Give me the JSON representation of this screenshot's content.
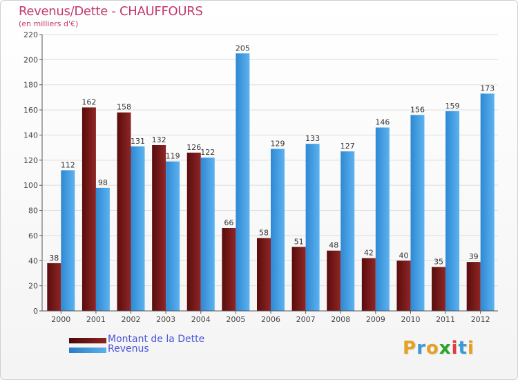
{
  "chart_data": {
    "type": "bar",
    "title": "Revenus/Dette - CHAUFFOURS",
    "subtitle": "(en milliers d'€)",
    "categories": [
      "2000",
      "2001",
      "2002",
      "2003",
      "2004",
      "2005",
      "2006",
      "2007",
      "2008",
      "2009",
      "2010",
      "2011",
      "2012"
    ],
    "series": [
      {
        "name": "Montant de la Dette",
        "color": "#7a1a1a",
        "values": [
          38,
          162,
          158,
          132,
          126,
          66,
          58,
          51,
          48,
          42,
          40,
          35,
          39
        ]
      },
      {
        "name": "Revenus",
        "color": "#3e9ee6",
        "values": [
          112,
          98,
          131,
          119,
          122,
          205,
          129,
          133,
          127,
          146,
          156,
          159,
          173
        ]
      }
    ],
    "ylim": [
      0,
      220
    ],
    "yticks": [
      0,
      20,
      40,
      60,
      80,
      100,
      120,
      140,
      160,
      180,
      200,
      220
    ],
    "grid": true,
    "legend_position": "bottom-left"
  },
  "logo": {
    "letters": [
      "P",
      "r",
      "o",
      "x",
      "i",
      "t",
      "i"
    ],
    "colors": [
      "#e8a020",
      "#3a9ad9",
      "#e8a020",
      "#2aa52a",
      "#e23b3b",
      "#3a9ad9",
      "#e8a020"
    ]
  }
}
